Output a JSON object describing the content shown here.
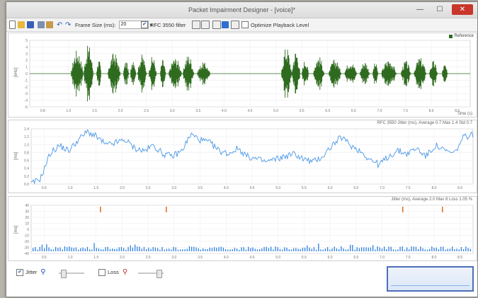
{
  "window": {
    "title": "Packet Impairment Designer - [voice]*",
    "minimize": "—",
    "maximize": "☐",
    "close": "✕"
  },
  "toolbar": {
    "frame_size_label": "Frame Size (ms):",
    "frame_size_value": "20",
    "rfc_filter_label": "RFC 3550 filter",
    "rfc_filter_checked": true,
    "optimize_label": "Optimize Playback Level",
    "optimize_checked": false
  },
  "waveform_panel": {
    "legend": "Reference",
    "y_axis_label": "[kHz]",
    "x_axis_unit": "Time (s)",
    "x_ticks": [
      "0.8",
      "1.0",
      "1.5",
      "2.0",
      "2.5",
      "3.0",
      "3.5",
      "4.0",
      "4.5",
      "5.0",
      "5.5",
      "6.0",
      "6.5",
      "7.0",
      "7.5",
      "8.0",
      "8.5"
    ],
    "y_ticks": [
      "5",
      "4",
      "3",
      "2",
      "1",
      "0",
      "-1",
      "-2",
      "-3",
      "-4",
      "-5"
    ],
    "wave_color": "#2f6b1f"
  },
  "delay_panel": {
    "caption": "RFC 3550 Jitter (ms), Average 0.7  Max 1.4  Std 0.7",
    "y_axis_label": "[ms]",
    "y_ticks": [
      "1.4",
      "1.2",
      "1.0",
      "0.8",
      "0.6",
      "0.4",
      "0.2",
      "0.0"
    ],
    "x_ticks": [
      "0.5",
      "1.0",
      "1.5",
      "2.0",
      "2.5",
      "3.0",
      "3.5",
      "4.0",
      "4.5",
      "5.0",
      "5.5",
      "6.0",
      "6.5",
      "7.0",
      "7.5",
      "8.0",
      "8.5"
    ],
    "line_color": "#4a97e6"
  },
  "jitter_panel": {
    "caption": "Jitter (ms), Average 2.0  Max 8  Loss 1.05 %",
    "y_axis_label": "[ms]",
    "y_ticks": [
      "40",
      "30",
      "20",
      "10",
      "0",
      "-10",
      "-20",
      "-30",
      "-40"
    ],
    "x_ticks": [
      "0.5",
      "1.0",
      "1.5",
      "2.0",
      "2.5",
      "3.0",
      "3.5",
      "4.0",
      "4.5",
      "5.0",
      "5.5",
      "6.0",
      "6.5",
      "7.0",
      "7.5",
      "8.0",
      "8.5"
    ],
    "bar_color": "#2e7fe0",
    "loss_color": "#e0752e"
  },
  "bottom": {
    "jitter_label": "Jitter",
    "jitter_checked": true,
    "loss_label": "Loss",
    "loss_checked": false,
    "jitter_slider": 0.1,
    "loss_slider": 0.85
  }
}
